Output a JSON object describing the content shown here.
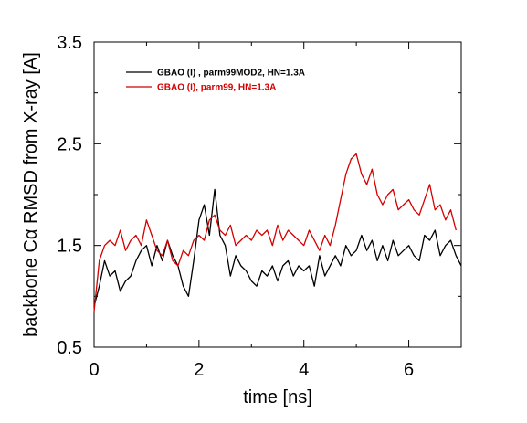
{
  "chart_data": {
    "type": "line",
    "xlabel": "time [ns]",
    "ylabel": "backbone Cα RMSD from X-ray [A]",
    "xlim": [
      0,
      7
    ],
    "ylim": [
      0.5,
      3.5
    ],
    "xticks": [
      "0",
      "2",
      "4",
      "6"
    ],
    "yticks": [
      "0.5",
      "1.5",
      "2.5",
      "3.5"
    ],
    "legend_position": "top-left",
    "grid": false,
    "series": [
      {
        "name": "GBAO (I) , parm99MOD2, HN=1.3A",
        "color": "#000000",
        "x": [
          0.0,
          0.1,
          0.2,
          0.3,
          0.4,
          0.5,
          0.6,
          0.7,
          0.8,
          0.9,
          1.0,
          1.1,
          1.2,
          1.3,
          1.4,
          1.5,
          1.6,
          1.7,
          1.8,
          1.9,
          2.0,
          2.1,
          2.2,
          2.3,
          2.4,
          2.5,
          2.6,
          2.7,
          2.8,
          2.9,
          3.0,
          3.1,
          3.2,
          3.3,
          3.4,
          3.5,
          3.6,
          3.7,
          3.8,
          3.9,
          4.0,
          4.1,
          4.2,
          4.3,
          4.4,
          4.5,
          4.6,
          4.7,
          4.8,
          4.9,
          5.0,
          5.1,
          5.2,
          5.3,
          5.4,
          5.5,
          5.6,
          5.7,
          5.8,
          5.9,
          6.0,
          6.1,
          6.2,
          6.3,
          6.4,
          6.5,
          6.6,
          6.7,
          6.8,
          6.9,
          7.0
        ],
        "y": [
          0.9,
          1.1,
          1.35,
          1.2,
          1.25,
          1.05,
          1.15,
          1.2,
          1.35,
          1.45,
          1.5,
          1.3,
          1.5,
          1.35,
          1.55,
          1.4,
          1.3,
          1.1,
          1.0,
          1.35,
          1.75,
          1.9,
          1.6,
          2.05,
          1.6,
          1.5,
          1.2,
          1.4,
          1.3,
          1.25,
          1.15,
          1.1,
          1.25,
          1.2,
          1.3,
          1.15,
          1.3,
          1.35,
          1.2,
          1.3,
          1.25,
          1.3,
          1.1,
          1.4,
          1.2,
          1.3,
          1.4,
          1.3,
          1.5,
          1.4,
          1.45,
          1.6,
          1.45,
          1.55,
          1.35,
          1.5,
          1.35,
          1.55,
          1.4,
          1.45,
          1.5,
          1.4,
          1.35,
          1.6,
          1.55,
          1.65,
          1.4,
          1.5,
          1.55,
          1.4,
          1.3
        ]
      },
      {
        "name": "GBAO (I), parm99, HN=1.3A",
        "color": "#d40000",
        "x": [
          0.0,
          0.1,
          0.2,
          0.3,
          0.4,
          0.5,
          0.6,
          0.7,
          0.8,
          0.9,
          1.0,
          1.1,
          1.2,
          1.3,
          1.4,
          1.5,
          1.6,
          1.7,
          1.8,
          1.9,
          2.0,
          2.1,
          2.2,
          2.3,
          2.4,
          2.5,
          2.6,
          2.7,
          2.8,
          2.9,
          3.0,
          3.1,
          3.2,
          3.3,
          3.4,
          3.5,
          3.6,
          3.7,
          3.8,
          3.9,
          4.0,
          4.1,
          4.2,
          4.3,
          4.4,
          4.5,
          4.6,
          4.7,
          4.8,
          4.9,
          5.0,
          5.1,
          5.2,
          5.3,
          5.4,
          5.5,
          5.6,
          5.7,
          5.8,
          5.9,
          6.0,
          6.1,
          6.2,
          6.3,
          6.4,
          6.5,
          6.6,
          6.7,
          6.8,
          6.9
        ],
        "y": [
          0.85,
          1.35,
          1.5,
          1.55,
          1.5,
          1.65,
          1.45,
          1.55,
          1.6,
          1.5,
          1.75,
          1.6,
          1.45,
          1.4,
          1.55,
          1.35,
          1.3,
          1.45,
          1.4,
          1.55,
          1.6,
          1.55,
          1.75,
          1.8,
          1.65,
          1.6,
          1.7,
          1.5,
          1.55,
          1.6,
          1.55,
          1.65,
          1.6,
          1.65,
          1.5,
          1.7,
          1.55,
          1.65,
          1.6,
          1.55,
          1.5,
          1.65,
          1.55,
          1.45,
          1.6,
          1.5,
          1.7,
          1.95,
          2.2,
          2.35,
          2.4,
          2.2,
          2.1,
          2.25,
          2.0,
          1.9,
          2.0,
          2.05,
          1.85,
          1.9,
          1.95,
          1.85,
          1.8,
          1.95,
          2.1,
          1.85,
          1.9,
          1.75,
          1.85,
          1.65
        ]
      }
    ]
  }
}
